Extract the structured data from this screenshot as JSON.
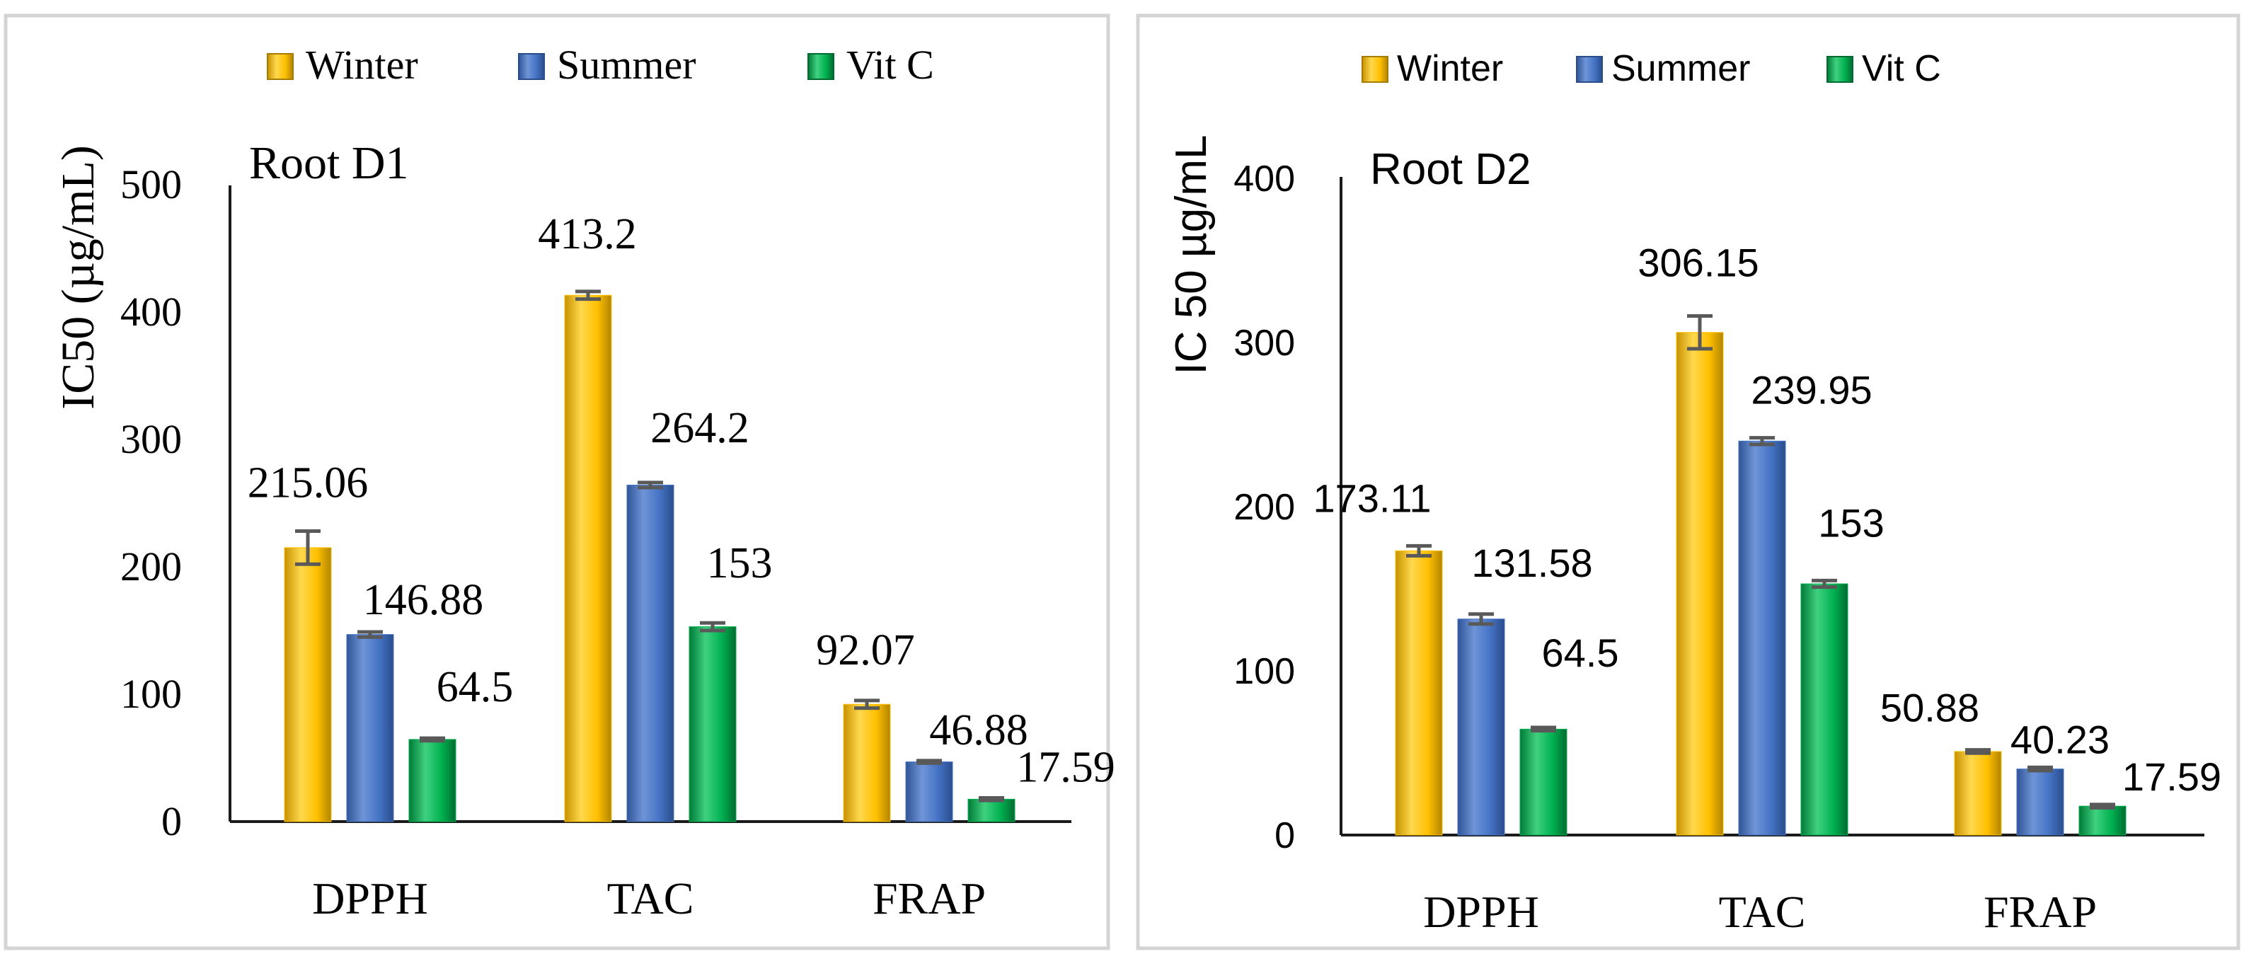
{
  "colors": {
    "winter": "#ffc000",
    "summer": "#4472c4",
    "vitc": "#00b050",
    "axis": "#1a1a1a",
    "errorbar": "#595959",
    "frame": "#d4d4d4"
  },
  "chart_data": [
    {
      "type": "bar",
      "title": "Root D1",
      "ylabel": "IC50 (µg/mL)",
      "xlabel": "",
      "categories": [
        "DPPH",
        "TAC",
        "FRAP"
      ],
      "ylim": [
        0,
        500
      ],
      "yticks": [
        0,
        100,
        200,
        300,
        400,
        500
      ],
      "ytick_labels": [
        "0",
        "100",
        "200",
        "300",
        "400",
        "500"
      ],
      "grid": false,
      "legend": "top",
      "series": [
        {
          "name": "Winter",
          "values": [
            215.06,
            413.2,
            92.07
          ],
          "labels": [
            "215.06",
            "413.2",
            "92.07"
          ],
          "errors": [
            13,
            3,
            3
          ]
        },
        {
          "name": "Summer",
          "values": [
            146.88,
            264.2,
            46.88
          ],
          "labels": [
            "146.88",
            "264.2",
            "46.88"
          ],
          "errors": [
            2,
            2,
            1
          ]
        },
        {
          "name": "Vit C",
          "values": [
            64.5,
            153,
            17.59
          ],
          "labels": [
            "64.5",
            "153",
            "17.59"
          ],
          "errors": [
            1,
            3,
            1
          ]
        }
      ]
    },
    {
      "type": "bar",
      "title": "Root D2",
      "ylabel": "IC 50 µg/mL",
      "xlabel": "",
      "categories": [
        "DPPH",
        "TAC",
        "FRAP"
      ],
      "ylim": [
        0,
        400
      ],
      "yticks": [
        0,
        100,
        200,
        300,
        400
      ],
      "ytick_labels": [
        "0",
        "100",
        "200",
        "300",
        "400"
      ],
      "grid": false,
      "legend": "top",
      "series": [
        {
          "name": "Winter",
          "values": [
            173.11,
            306.15,
            50.88
          ],
          "labels": [
            "173.11",
            "306.15",
            "50.88"
          ],
          "errors": [
            3,
            10,
            1
          ]
        },
        {
          "name": "Summer",
          "values": [
            131.58,
            239.95,
            40.23
          ],
          "labels": [
            "131.58",
            "239.95",
            "40.23"
          ],
          "errors": [
            3,
            2,
            1
          ]
        },
        {
          "name": "Vit C",
          "values": [
            64.5,
            153,
            17.59
          ],
          "labels": [
            "64.5",
            "153",
            "17.59"
          ],
          "errors": [
            1,
            2,
            1
          ]
        }
      ]
    }
  ]
}
